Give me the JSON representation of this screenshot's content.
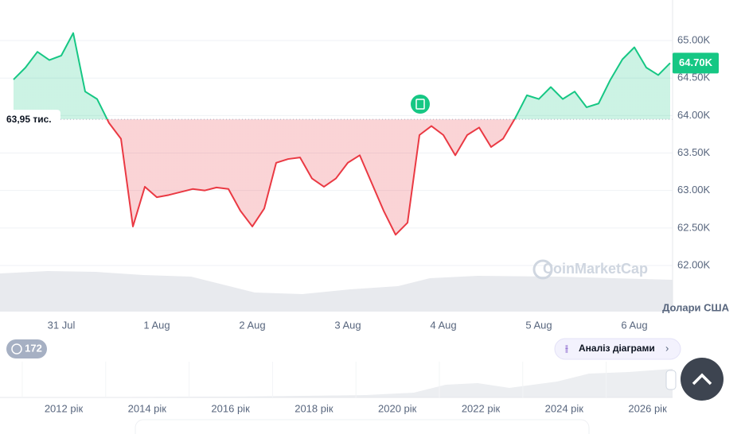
{
  "chart_data": {
    "type": "line",
    "categories": [
      null,
      null,
      null,
      null,
      "31 Jul",
      null,
      null,
      null,
      null,
      null,
      null,
      null,
      "1 Aug",
      null,
      null,
      null,
      null,
      null,
      null,
      null,
      "2 Aug",
      null,
      null,
      null,
      null,
      null,
      null,
      null,
      "3 Aug",
      null,
      null,
      null,
      null,
      null,
      null,
      null,
      "4 Aug",
      null,
      null,
      null,
      null,
      null,
      null,
      null,
      "5 Aug",
      null,
      null,
      null,
      null,
      null,
      null,
      null,
      "6 Aug",
      null,
      null,
      null
    ],
    "series": [
      {
        "values": [
          64480,
          64640,
          64850,
          64740,
          64800,
          65100,
          64320,
          64220,
          63900,
          63690,
          62520,
          63050,
          62910,
          62940,
          62980,
          63020,
          63000,
          63040,
          63020,
          62730,
          62520,
          62760,
          63370,
          63420,
          63440,
          63160,
          63050,
          63160,
          63370,
          63470,
          63100,
          62730,
          62410,
          62570,
          63740,
          63860,
          63740,
          63470,
          63740,
          63840,
          63580,
          63690,
          63960,
          64270,
          64220,
          64380,
          64220,
          64320,
          64110,
          64160,
          64480,
          64750,
          64910,
          64640,
          64540,
          64700
        ]
      }
    ],
    "colors": [
      "#16c784",
      "#ea3943"
    ],
    "baseline": {
      "value": 63950,
      "label": "63,95 тис."
    },
    "last_price": {
      "value": 64700,
      "label": "64.70K"
    },
    "ylim": [
      61385,
      65541
    ],
    "yticks": [
      {
        "value": 62000,
        "label": "62.00K"
      },
      {
        "value": 62500,
        "label": "62.50K"
      },
      {
        "value": 63000,
        "label": "63.00K"
      },
      {
        "value": 63500,
        "label": "63.50K"
      },
      {
        "value": 64000,
        "label": "64.00K"
      },
      {
        "value": 64500,
        "label": "64.50K"
      },
      {
        "value": 65000,
        "label": "65.00K"
      }
    ],
    "grid": true,
    "unit": "Долари США",
    "watermark": "CoinMarketCap",
    "badge": "172",
    "button": "Аналіз діаграми",
    "overview_labels": [
      "2012 рік",
      "2014 рік",
      "2016 рік",
      "2018 рік",
      "2020 рік",
      "2022 рік",
      "2024 рік",
      "2026 рік"
    ]
  }
}
